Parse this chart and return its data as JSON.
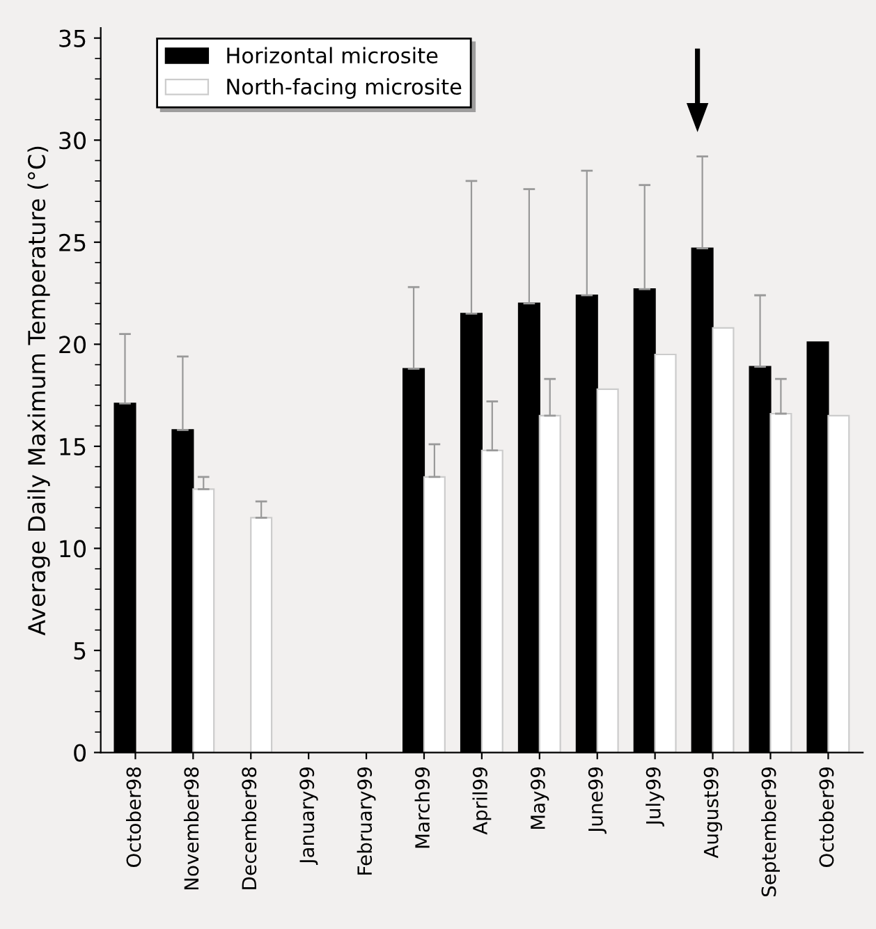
{
  "chart_data": {
    "type": "bar",
    "ylabel": "Average Daily Maximum Temperature (°C)",
    "categories": [
      "October98",
      "November98",
      "December98",
      "January99",
      "February99",
      "March99",
      "April99",
      "May99",
      "June99",
      "July99",
      "August99",
      "September99",
      "October99"
    ],
    "series": [
      {
        "name": "Horizontal microsite",
        "color": "#000000",
        "values": [
          17.1,
          15.8,
          null,
          null,
          null,
          18.8,
          21.5,
          22.0,
          22.4,
          22.7,
          24.7,
          18.9,
          20.1
        ],
        "errors": [
          [
            17.1,
            20.5
          ],
          [
            15.8,
            19.4
          ],
          null,
          null,
          null,
          [
            18.8,
            22.8
          ],
          [
            21.5,
            28.0
          ],
          [
            22.0,
            27.6
          ],
          [
            22.4,
            28.5
          ],
          [
            22.7,
            27.8
          ],
          [
            24.7,
            29.2
          ],
          [
            18.9,
            22.4
          ],
          null
        ]
      },
      {
        "name": "North-facing microsite",
        "color": "#ffffff",
        "values": [
          null,
          12.9,
          11.5,
          null,
          null,
          13.5,
          14.8,
          16.5,
          17.8,
          19.5,
          20.8,
          16.6,
          16.5
        ],
        "errors": [
          null,
          [
            12.9,
            13.5
          ],
          [
            11.5,
            12.3
          ],
          null,
          null,
          [
            13.5,
            15.1
          ],
          [
            14.8,
            17.2
          ],
          [
            16.5,
            18.3
          ],
          null,
          null,
          null,
          [
            16.6,
            18.3
          ],
          null
        ]
      }
    ],
    "ylim": [
      0,
      35.5
    ],
    "yticks": [
      0,
      5,
      10,
      15,
      20,
      25,
      30,
      35
    ],
    "grid": false,
    "legend": "top left"
  }
}
